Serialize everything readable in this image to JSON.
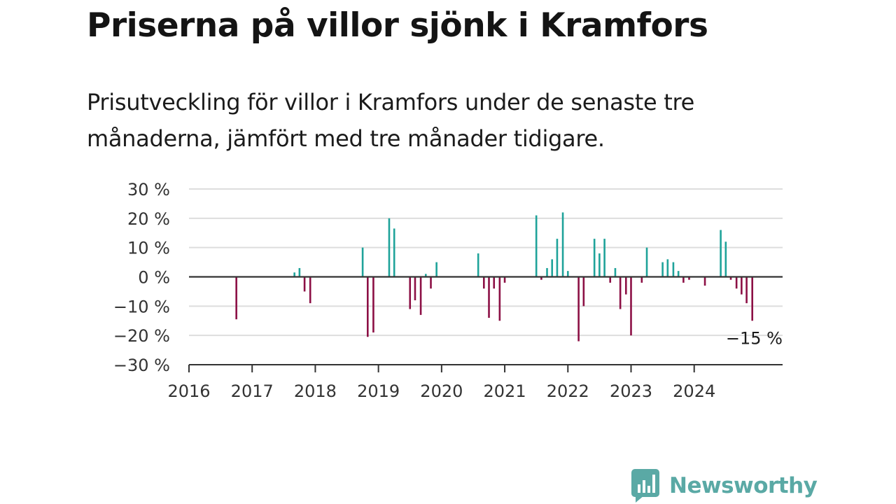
{
  "title": "Priserna på villor sjönk i Kramfors",
  "subtitle": "Prisutveckling för villor i Kramfors under de senaste tre månaderna, jämfört med tre månader tidigare.",
  "brand": {
    "name": "Newsworthy",
    "icon": "newsworthy-logo-icon",
    "color": "#5aa9a5"
  },
  "colors": {
    "positive": "#1fa39a",
    "negative": "#8c1045",
    "grid": "#dddddd",
    "axis": "#333333"
  },
  "chart_data": {
    "type": "bar",
    "ylim": [
      -30,
      30
    ],
    "yticks": [
      30,
      20,
      10,
      0,
      -10,
      -20,
      -30
    ],
    "ytick_labels": [
      "30 %",
      "20 %",
      "10 %",
      "0 %",
      "−10 %",
      "−20 %",
      "−30 %"
    ],
    "xlim": [
      2016.0,
      2025.4
    ],
    "xticks": [
      2016,
      2017,
      2018,
      2019,
      2020,
      2021,
      2022,
      2023,
      2024
    ],
    "xtick_labels": [
      "2016",
      "2017",
      "2018",
      "2019",
      "2020",
      "2021",
      "2022",
      "2023",
      "2024"
    ],
    "grid": true,
    "end_label": "−15 %",
    "points": [
      {
        "x": 2016.75,
        "y": -14.5
      },
      {
        "x": 2017.67,
        "y": 1.5
      },
      {
        "x": 2017.75,
        "y": 3
      },
      {
        "x": 2017.83,
        "y": -5
      },
      {
        "x": 2017.92,
        "y": -9
      },
      {
        "x": 2018.75,
        "y": 10
      },
      {
        "x": 2018.83,
        "y": -20.5
      },
      {
        "x": 2018.92,
        "y": -19
      },
      {
        "x": 2019.17,
        "y": 20
      },
      {
        "x": 2019.25,
        "y": 16.5
      },
      {
        "x": 2019.5,
        "y": -11
      },
      {
        "x": 2019.58,
        "y": -8
      },
      {
        "x": 2019.67,
        "y": -13
      },
      {
        "x": 2019.75,
        "y": 1
      },
      {
        "x": 2019.83,
        "y": -4
      },
      {
        "x": 2019.92,
        "y": 5
      },
      {
        "x": 2020.58,
        "y": 8
      },
      {
        "x": 2020.67,
        "y": -4
      },
      {
        "x": 2020.75,
        "y": -14
      },
      {
        "x": 2020.83,
        "y": -4
      },
      {
        "x": 2020.92,
        "y": -15
      },
      {
        "x": 2021.0,
        "y": -2
      },
      {
        "x": 2021.5,
        "y": 21
      },
      {
        "x": 2021.58,
        "y": -1
      },
      {
        "x": 2021.67,
        "y": 3
      },
      {
        "x": 2021.75,
        "y": 6
      },
      {
        "x": 2021.83,
        "y": 13
      },
      {
        "x": 2021.92,
        "y": 22
      },
      {
        "x": 2022.0,
        "y": 2
      },
      {
        "x": 2022.17,
        "y": -22
      },
      {
        "x": 2022.25,
        "y": -10
      },
      {
        "x": 2022.42,
        "y": 13
      },
      {
        "x": 2022.5,
        "y": 8
      },
      {
        "x": 2022.58,
        "y": 13
      },
      {
        "x": 2022.67,
        "y": -2
      },
      {
        "x": 2022.75,
        "y": 3
      },
      {
        "x": 2022.83,
        "y": -11
      },
      {
        "x": 2022.92,
        "y": -6
      },
      {
        "x": 2023.0,
        "y": -20
      },
      {
        "x": 2023.17,
        "y": -2
      },
      {
        "x": 2023.25,
        "y": 10
      },
      {
        "x": 2023.5,
        "y": 5
      },
      {
        "x": 2023.58,
        "y": 6
      },
      {
        "x": 2023.67,
        "y": 5
      },
      {
        "x": 2023.75,
        "y": 2
      },
      {
        "x": 2023.83,
        "y": -2
      },
      {
        "x": 2023.92,
        "y": -1
      },
      {
        "x": 2024.17,
        "y": -3
      },
      {
        "x": 2024.42,
        "y": 16
      },
      {
        "x": 2024.5,
        "y": 12
      },
      {
        "x": 2024.58,
        "y": -1
      },
      {
        "x": 2024.67,
        "y": -4
      },
      {
        "x": 2024.75,
        "y": -6
      },
      {
        "x": 2024.83,
        "y": -9
      },
      {
        "x": 2024.92,
        "y": -15
      }
    ]
  }
}
